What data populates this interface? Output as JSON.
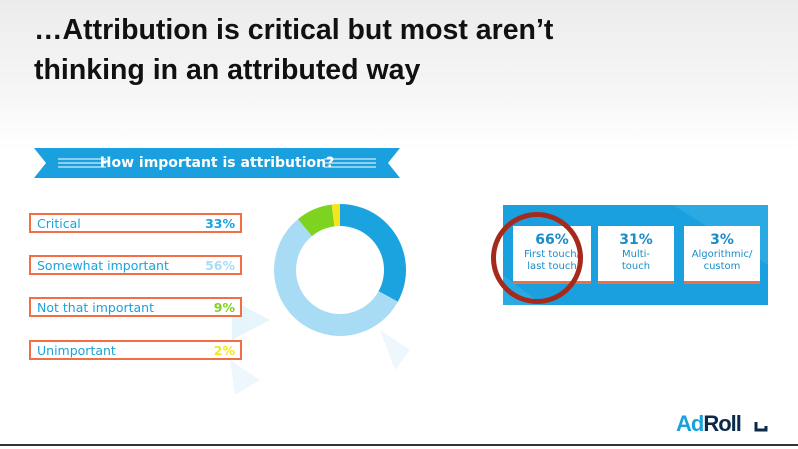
{
  "slide": {
    "title_lines": [
      "…Attribution is critical but most aren’t",
      "thinking in an attributed way"
    ]
  },
  "chart_data": [
    {
      "type": "pie",
      "title": "How important is attribution?",
      "categories": [
        "Critical",
        "Somewhat important",
        "Not that important",
        "Unimportant"
      ],
      "values": [
        33,
        56,
        9,
        2
      ],
      "value_labels": [
        "33%",
        "56%",
        "9%",
        "2%"
      ],
      "colors": [
        "#1ba3df",
        "#a8dcf5",
        "#7ed321",
        "#f5e61c"
      ],
      "unit": "%"
    },
    {
      "type": "bar",
      "categories": [
        "First touch/ last touch",
        "Multi- touch",
        "Algorithmic/ custom"
      ],
      "values": [
        66,
        31,
        3
      ],
      "value_labels": [
        "66%",
        "31%",
        "3%"
      ],
      "label_lines": [
        [
          "First touch/",
          "last touch"
        ],
        [
          "Multi-",
          "touch"
        ],
        [
          "Algorithmic/",
          "custom"
        ]
      ],
      "highlighted": "First touch/ last touch",
      "highlight_color": "#a52a1c",
      "unit": "%"
    }
  ],
  "colors": {
    "accent": "#1aa0de",
    "row_border": "#f36e45",
    "critical_value": "#1aa2dc",
    "somewhat_value": "#a8dcf5",
    "not_that_value": "#7ed321",
    "unimportant_value": "#f5e61c"
  },
  "logo": {
    "part1": "Ad",
    "part2": "Roll",
    "icon": "adroll-hook-logo"
  }
}
